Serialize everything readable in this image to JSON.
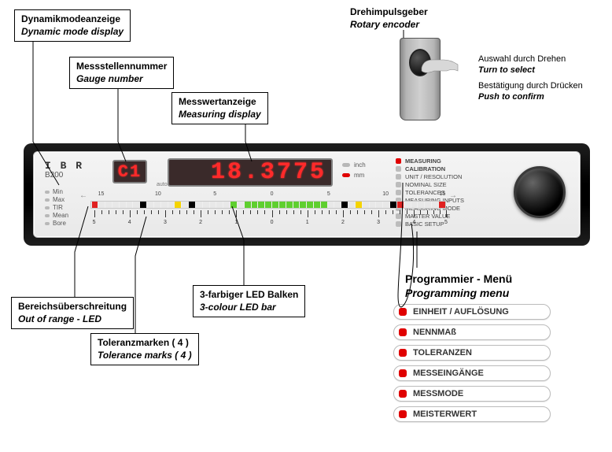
{
  "colors": {
    "led_red": "#e00000",
    "led_off": "#b8b8b8",
    "seg_red": "#ff2a2a",
    "seg_bg": "#3a2a2a",
    "panel_bg_top": "#f4f4f4",
    "panel_bg_bot": "#e9e9e9",
    "device_black": "#000000",
    "bar_green": "#5fcf2f",
    "bar_yellow": "#f5d400",
    "bar_red": "#e02020",
    "bar_off": "#e8e8e8",
    "tolerance_mark": "#000000"
  },
  "callouts": {
    "dynamic": {
      "de": "Dynamikmodeanzeige",
      "en": "Dynamic mode display"
    },
    "gauge": {
      "de": "Messstellennummer",
      "en": "Gauge number"
    },
    "measuring": {
      "de": "Messwertanzeige",
      "en": "Measuring display"
    },
    "encoder": {
      "de": "Drehimpulsgeber",
      "en": "Rotary encoder"
    },
    "enc_turn": {
      "de": "Auswahl durch Drehen",
      "en": "Turn to select"
    },
    "enc_push": {
      "de": "Bestätigung durch Drücken",
      "en": "Push to confirm"
    },
    "oor": {
      "de": "Bereichsüberschreitung",
      "en": "Out of range - LED"
    },
    "ledbar": {
      "de": "3-farbiger LED Balken",
      "en": "3-colour LED bar"
    },
    "tol": {
      "de": "Toleranzmarken ( 4 )",
      "en": "Tolerance marks ( 4 )"
    },
    "progmenu": {
      "de": "Programmier - Menü",
      "en": "Programming menu"
    }
  },
  "device": {
    "brand": "I B R",
    "model": "B200",
    "mode_labels": [
      "Min",
      "Max",
      "TIR",
      "Mean",
      "Bore"
    ],
    "auto_label": "auto",
    "gauge_value": "C1",
    "main_value": "18.3775",
    "units": [
      {
        "label": "inch",
        "active": false
      },
      {
        "label": "mm",
        "active": true
      }
    ],
    "menu_items": [
      {
        "label": "MEASURING",
        "active": true,
        "bold": true
      },
      {
        "label": "CALIBRATION",
        "active": false,
        "bold": true
      },
      {
        "label": "UNIT / RESOLUTION",
        "active": false,
        "bold": false
      },
      {
        "label": "NOMINAL SIZE",
        "active": false,
        "bold": false
      },
      {
        "label": "TOLERANCES",
        "active": false,
        "bold": false
      },
      {
        "label": "MEASURING INPUTS",
        "active": false,
        "bold": false
      },
      {
        "label": "MEASURING MODE",
        "active": false,
        "bold": false
      },
      {
        "label": "MASTER VALUE",
        "active": false,
        "bold": false
      },
      {
        "label": "BASIC SETUP",
        "active": false,
        "bold": false
      }
    ],
    "top_scale": {
      "labels": [
        "15",
        "10",
        "5",
        "0",
        "5",
        "10",
        "15"
      ],
      "positions_pct": [
        3,
        19,
        35,
        51,
        67,
        83,
        99
      ]
    },
    "bottom_scale": {
      "major_labels": [
        "5",
        "4",
        "3",
        "2",
        "1",
        "0",
        "1",
        "2",
        "3",
        "4",
        "5"
      ],
      "major_positions_pct": [
        1,
        11,
        21,
        31,
        41,
        51,
        61,
        71,
        81,
        91,
        100
      ],
      "minor_per_gap": 4,
      "major_tick_h": 9,
      "minor_tick_h": 5
    },
    "led_bar": {
      "segments": 51,
      "pattern": [
        {
          "from": 0,
          "to": 0,
          "color": "bar_red"
        },
        {
          "from": 1,
          "to": 6,
          "color": "bar_off"
        },
        {
          "from": 7,
          "to": 7,
          "color": "tolerance_mark"
        },
        {
          "from": 8,
          "to": 11,
          "color": "bar_off"
        },
        {
          "from": 12,
          "to": 12,
          "color": "bar_yellow"
        },
        {
          "from": 13,
          "to": 13,
          "color": "bar_off"
        },
        {
          "from": 14,
          "to": 14,
          "color": "tolerance_mark"
        },
        {
          "from": 15,
          "to": 19,
          "color": "bar_off"
        },
        {
          "from": 20,
          "to": 20,
          "color": "bar_green"
        },
        {
          "from": 21,
          "to": 21,
          "color": "bar_off"
        },
        {
          "from": 22,
          "to": 33,
          "color": "bar_green"
        },
        {
          "from": 34,
          "to": 35,
          "color": "bar_off"
        },
        {
          "from": 36,
          "to": 36,
          "color": "tolerance_mark"
        },
        {
          "from": 37,
          "to": 37,
          "color": "bar_off"
        },
        {
          "from": 38,
          "to": 38,
          "color": "bar_yellow"
        },
        {
          "from": 39,
          "to": 42,
          "color": "bar_off"
        },
        {
          "from": 43,
          "to": 43,
          "color": "tolerance_mark"
        },
        {
          "from": 44,
          "to": 44,
          "color": "bar_red"
        },
        {
          "from": 45,
          "to": 49,
          "color": "bar_off"
        },
        {
          "from": 50,
          "to": 50,
          "color": "bar_red"
        }
      ]
    },
    "arrows": {
      "left": "←",
      "right": "→"
    }
  },
  "prog_menu_items": [
    "EINHEIT / AUFLÖSUNG",
    "NENNMAß",
    "TOLERANZEN",
    "MESSEINGÄNGE",
    "MESSMODE",
    "MEISTERWERT"
  ]
}
